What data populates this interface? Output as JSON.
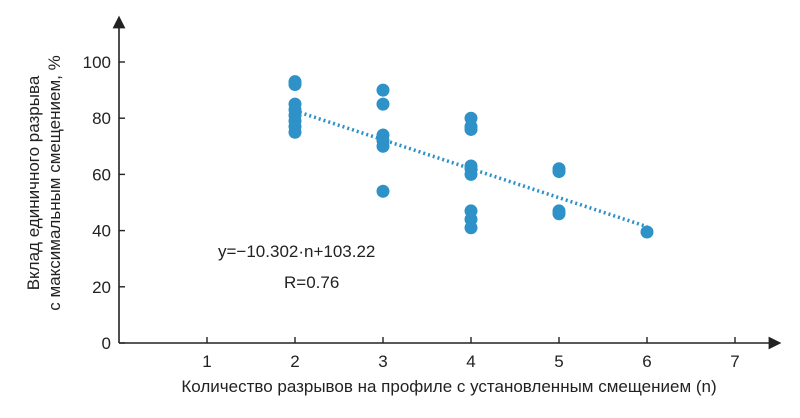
{
  "chart_data": {
    "type": "scatter",
    "xlabel": "Количество разрывов на профиле с установленным смещением (n)",
    "ylabel_lines": [
      "Вклад единичного разрыва",
      "с максимальным смещением, %"
    ],
    "xlim": [
      0,
      7
    ],
    "ylim": [
      0,
      100
    ],
    "x_ticks": [
      1,
      2,
      3,
      4,
      5,
      6,
      7
    ],
    "y_ticks": [
      0,
      20,
      40,
      60,
      80,
      100
    ],
    "grid": false,
    "point_color": "#2e91c8",
    "trend_color": "#2e91c8",
    "points": [
      {
        "x": 2,
        "y": 93
      },
      {
        "x": 2,
        "y": 92
      },
      {
        "x": 2,
        "y": 85
      },
      {
        "x": 2,
        "y": 83
      },
      {
        "x": 2,
        "y": 81
      },
      {
        "x": 2,
        "y": 79
      },
      {
        "x": 2,
        "y": 77
      },
      {
        "x": 2,
        "y": 75
      },
      {
        "x": 3,
        "y": 90
      },
      {
        "x": 3,
        "y": 85
      },
      {
        "x": 3,
        "y": 74
      },
      {
        "x": 3,
        "y": 72
      },
      {
        "x": 3,
        "y": 70
      },
      {
        "x": 3,
        "y": 54
      },
      {
        "x": 4,
        "y": 80
      },
      {
        "x": 4,
        "y": 77
      },
      {
        "x": 4,
        "y": 76
      },
      {
        "x": 4,
        "y": 63
      },
      {
        "x": 4,
        "y": 62
      },
      {
        "x": 4,
        "y": 60
      },
      {
        "x": 4,
        "y": 47
      },
      {
        "x": 4,
        "y": 44
      },
      {
        "x": 4,
        "y": 41
      },
      {
        "x": 5,
        "y": 62
      },
      {
        "x": 5,
        "y": 61
      },
      {
        "x": 5,
        "y": 47
      },
      {
        "x": 5,
        "y": 46
      },
      {
        "x": 6,
        "y": 39.5
      }
    ],
    "trendline": {
      "slope": -10.302,
      "intercept": 103.22,
      "x_range": [
        2,
        6
      ],
      "style": "dotted"
    },
    "annotations": {
      "equation": "y=−10.302·n+103.22",
      "r": "R=0.76"
    }
  }
}
